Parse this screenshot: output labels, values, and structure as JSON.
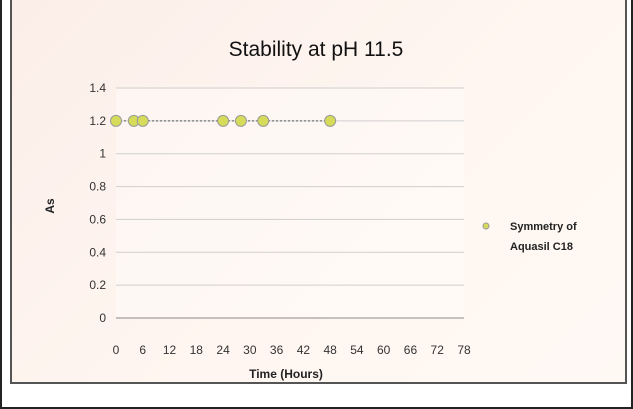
{
  "chart_data": {
    "type": "scatter",
    "title": "Stability at pH 11.5",
    "xlabel": "Time (Hours)",
    "ylabel": "As",
    "x_ticks": [
      "0",
      "6",
      "12",
      "18",
      "24",
      "30",
      "36",
      "42",
      "48",
      "54",
      "60",
      "66",
      "72",
      "78"
    ],
    "y_ticks": [
      "0",
      "0.2",
      "0.4",
      "0.6",
      "0.8",
      "1",
      "1.2",
      "1.4"
    ],
    "xlim": [
      0,
      78
    ],
    "ylim": [
      0,
      1.4
    ],
    "grid": true,
    "legend_position": "right",
    "series": [
      {
        "name": "Symmetry of Aquasil C18",
        "marker_color": "#d6dc5a",
        "line_style": "dotted",
        "points": [
          {
            "x": 0,
            "y": 1.2
          },
          {
            "x": 4,
            "y": 1.2
          },
          {
            "x": 6,
            "y": 1.2
          },
          {
            "x": 24,
            "y": 1.2
          },
          {
            "x": 28,
            "y": 1.2
          },
          {
            "x": 33,
            "y": 1.2
          },
          {
            "x": 48,
            "y": 1.2
          }
        ]
      }
    ]
  }
}
